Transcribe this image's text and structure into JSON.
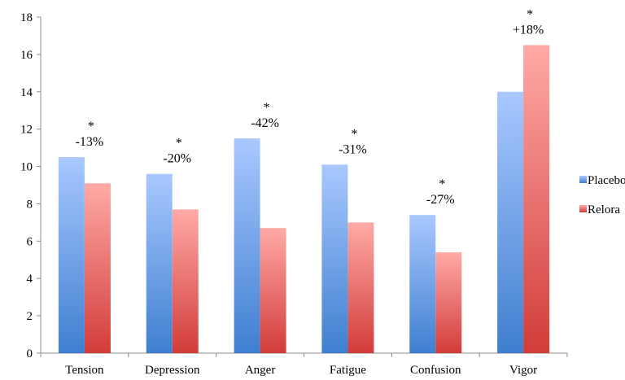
{
  "chart_data": {
    "type": "bar",
    "categories": [
      "Tension",
      "Depression",
      "Anger",
      "Fatigue",
      "Confusion",
      "Vigor"
    ],
    "series": [
      {
        "name": "Placebo",
        "values": [
          10.5,
          9.6,
          11.5,
          10.1,
          7.4,
          14.0
        ]
      },
      {
        "name": "Relora",
        "values": [
          9.1,
          7.7,
          6.7,
          7.0,
          5.4,
          16.5
        ]
      }
    ],
    "annotations": [
      {
        "category": "Tension",
        "marker": "*",
        "label": "-13%"
      },
      {
        "category": "Depression",
        "marker": "*",
        "label": "-20%"
      },
      {
        "category": "Anger",
        "marker": "*",
        "label": "-42%"
      },
      {
        "category": "Fatigue",
        "marker": "*",
        "label": "-31%"
      },
      {
        "category": "Confusion",
        "marker": "*",
        "label": "-27%"
      },
      {
        "category": "Vigor",
        "marker": "*",
        "label": "+18%"
      }
    ],
    "ylim": [
      0,
      18
    ],
    "yticks": [
      0,
      2,
      4,
      6,
      8,
      10,
      12,
      14,
      16,
      18
    ],
    "grid": false,
    "legend_position": "right",
    "colors": {
      "placebo_top": "#a9c8ff",
      "placebo_bottom": "#3f7fd0",
      "relora_top": "#ffaaa6",
      "relora_bottom": "#d23c3a"
    },
    "title": "",
    "xlabel": "",
    "ylabel": ""
  }
}
